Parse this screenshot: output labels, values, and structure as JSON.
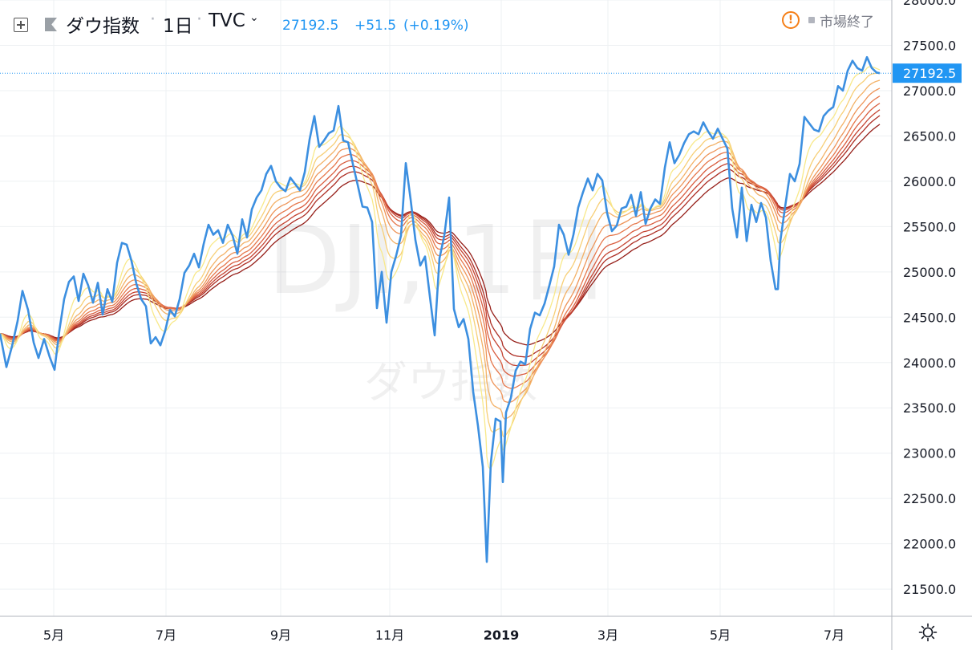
{
  "header": {
    "symbol_name": "ダウ指数",
    "interval": "1日",
    "exchange": "TVC",
    "last_price": "27192.5",
    "change": "+51.5",
    "change_percent": "(+0.19%)",
    "market_status": "市場終了"
  },
  "watermark": {
    "main": "DJI, 1日",
    "sub": "ダウ指数"
  },
  "colors": {
    "price_line": "#3c8fe0",
    "price_label_bg": "#2196f3",
    "grid": "#eef0f3",
    "axis_text": "#131722",
    "ribbon": [
      "#f8e98a",
      "#f7cf76",
      "#f3b166",
      "#ee9458",
      "#e6784c",
      "#d95d3f",
      "#c54432",
      "#ad2e24",
      "#951e18"
    ]
  },
  "chart_data": {
    "type": "line",
    "ylim": [
      21200,
      28000
    ],
    "yticks": [
      "21500.0",
      "22000.0",
      "22500.0",
      "23000.0",
      "23500.0",
      "24000.0",
      "24500.0",
      "25000.0",
      "25500.0",
      "26000.0",
      "26500.0",
      "27000.0",
      "27500.0",
      "28000.0"
    ],
    "xticks": [
      {
        "label": "5月",
        "t": 67,
        "bold": false
      },
      {
        "label": "7月",
        "t": 207,
        "bold": false
      },
      {
        "label": "9月",
        "t": 350,
        "bold": false
      },
      {
        "label": "11月",
        "t": 486,
        "bold": false
      },
      {
        "label": "2019",
        "t": 625,
        "bold": true
      },
      {
        "label": "3月",
        "t": 758,
        "bold": false
      },
      {
        "label": "5月",
        "t": 898,
        "bold": false
      },
      {
        "label": "7月",
        "t": 1040,
        "bold": false
      }
    ],
    "current_value": 27192.5,
    "current_label": "27192.5",
    "series": [
      {
        "name": "DJI",
        "points": [
          [
            0,
            24320
          ],
          [
            8,
            23950
          ],
          [
            15,
            24180
          ],
          [
            22,
            24460
          ],
          [
            28,
            24790
          ],
          [
            35,
            24580
          ],
          [
            42,
            24220
          ],
          [
            48,
            24050
          ],
          [
            55,
            24260
          ],
          [
            62,
            24060
          ],
          [
            68,
            23920
          ],
          [
            74,
            24350
          ],
          [
            80,
            24700
          ],
          [
            86,
            24890
          ],
          [
            92,
            24950
          ],
          [
            98,
            24680
          ],
          [
            104,
            24980
          ],
          [
            110,
            24850
          ],
          [
            116,
            24660
          ],
          [
            122,
            24880
          ],
          [
            128,
            24530
          ],
          [
            134,
            24810
          ],
          [
            140,
            24670
          ],
          [
            146,
            25100
          ],
          [
            152,
            25320
          ],
          [
            158,
            25300
          ],
          [
            164,
            25120
          ],
          [
            170,
            24870
          ],
          [
            176,
            24700
          ],
          [
            182,
            24620
          ],
          [
            188,
            24210
          ],
          [
            194,
            24280
          ],
          [
            200,
            24190
          ],
          [
            206,
            24350
          ],
          [
            212,
            24580
          ],
          [
            218,
            24510
          ],
          [
            224,
            24700
          ],
          [
            230,
            24990
          ],
          [
            236,
            25070
          ],
          [
            242,
            25200
          ],
          [
            248,
            25050
          ],
          [
            254,
            25310
          ],
          [
            260,
            25520
          ],
          [
            266,
            25410
          ],
          [
            272,
            25460
          ],
          [
            278,
            25320
          ],
          [
            284,
            25520
          ],
          [
            290,
            25400
          ],
          [
            296,
            25200
          ],
          [
            302,
            25580
          ],
          [
            308,
            25380
          ],
          [
            314,
            25690
          ],
          [
            320,
            25820
          ],
          [
            326,
            25900
          ],
          [
            332,
            26080
          ],
          [
            338,
            26170
          ],
          [
            344,
            26000
          ],
          [
            350,
            25930
          ],
          [
            356,
            25890
          ],
          [
            362,
            26040
          ],
          [
            368,
            25970
          ],
          [
            374,
            25900
          ],
          [
            380,
            26100
          ],
          [
            386,
            26460
          ],
          [
            392,
            26720
          ],
          [
            398,
            26380
          ],
          [
            404,
            26450
          ],
          [
            410,
            26530
          ],
          [
            416,
            26560
          ],
          [
            422,
            26830
          ],
          [
            428,
            26450
          ],
          [
            434,
            26430
          ],
          [
            440,
            26190
          ],
          [
            446,
            25960
          ],
          [
            452,
            25720
          ],
          [
            458,
            25710
          ],
          [
            464,
            25550
          ],
          [
            470,
            24600
          ],
          [
            476,
            25000
          ],
          [
            482,
            24440
          ],
          [
            488,
            25000
          ],
          [
            494,
            25180
          ],
          [
            500,
            25400
          ],
          [
            506,
            26200
          ],
          [
            512,
            25800
          ],
          [
            518,
            25350
          ],
          [
            524,
            25070
          ],
          [
            530,
            25170
          ],
          [
            536,
            24730
          ],
          [
            542,
            24300
          ],
          [
            548,
            25150
          ],
          [
            554,
            25400
          ],
          [
            560,
            25820
          ],
          [
            566,
            24590
          ],
          [
            572,
            24390
          ],
          [
            578,
            24480
          ],
          [
            584,
            24260
          ],
          [
            590,
            23680
          ],
          [
            596,
            23300
          ],
          [
            602,
            22850
          ],
          [
            607,
            21800
          ],
          [
            612,
            22890
          ],
          [
            618,
            23380
          ],
          [
            624,
            23350
          ],
          [
            627,
            22680
          ],
          [
            631,
            23450
          ],
          [
            637,
            23610
          ],
          [
            643,
            23910
          ],
          [
            649,
            24010
          ],
          [
            655,
            23980
          ],
          [
            661,
            24370
          ],
          [
            667,
            24550
          ],
          [
            673,
            24520
          ],
          [
            679,
            24650
          ],
          [
            685,
            24850
          ],
          [
            691,
            25060
          ],
          [
            697,
            25520
          ],
          [
            703,
            25410
          ],
          [
            709,
            25190
          ],
          [
            715,
            25410
          ],
          [
            721,
            25710
          ],
          [
            727,
            25880
          ],
          [
            733,
            26030
          ],
          [
            739,
            25900
          ],
          [
            745,
            26080
          ],
          [
            751,
            26010
          ],
          [
            757,
            25650
          ],
          [
            763,
            25450
          ],
          [
            769,
            25510
          ],
          [
            775,
            25700
          ],
          [
            781,
            25720
          ],
          [
            787,
            25850
          ],
          [
            793,
            25620
          ],
          [
            799,
            25880
          ],
          [
            805,
            25530
          ],
          [
            811,
            25700
          ],
          [
            817,
            25800
          ],
          [
            823,
            25750
          ],
          [
            829,
            26150
          ],
          [
            835,
            26430
          ],
          [
            841,
            26200
          ],
          [
            847,
            26290
          ],
          [
            853,
            26420
          ],
          [
            859,
            26520
          ],
          [
            865,
            26550
          ],
          [
            871,
            26520
          ],
          [
            877,
            26650
          ],
          [
            883,
            26550
          ],
          [
            889,
            26470
          ],
          [
            895,
            26580
          ],
          [
            901,
            26470
          ],
          [
            907,
            26360
          ],
          [
            913,
            25700
          ],
          [
            919,
            25380
          ],
          [
            925,
            25930
          ],
          [
            931,
            25340
          ],
          [
            937,
            25740
          ],
          [
            943,
            25550
          ],
          [
            949,
            25760
          ],
          [
            955,
            25600
          ],
          [
            961,
            25120
          ],
          [
            967,
            24810
          ],
          [
            970,
            24810
          ],
          [
            973,
            25340
          ],
          [
            979,
            25720
          ],
          [
            985,
            26080
          ],
          [
            991,
            26000
          ],
          [
            997,
            26190
          ],
          [
            1003,
            26710
          ],
          [
            1009,
            26640
          ],
          [
            1015,
            26570
          ],
          [
            1021,
            26550
          ],
          [
            1027,
            26720
          ],
          [
            1033,
            26780
          ],
          [
            1039,
            26820
          ],
          [
            1045,
            27050
          ],
          [
            1051,
            27000
          ],
          [
            1057,
            27220
          ],
          [
            1063,
            27330
          ],
          [
            1069,
            27250
          ],
          [
            1075,
            27220
          ],
          [
            1081,
            27370
          ],
          [
            1087,
            27250
          ],
          [
            1093,
            27200
          ],
          [
            1097,
            27192.5
          ]
        ]
      }
    ],
    "ribbon_periods": [
      4,
      7,
      10,
      13,
      16,
      19,
      22,
      25,
      30
    ]
  }
}
